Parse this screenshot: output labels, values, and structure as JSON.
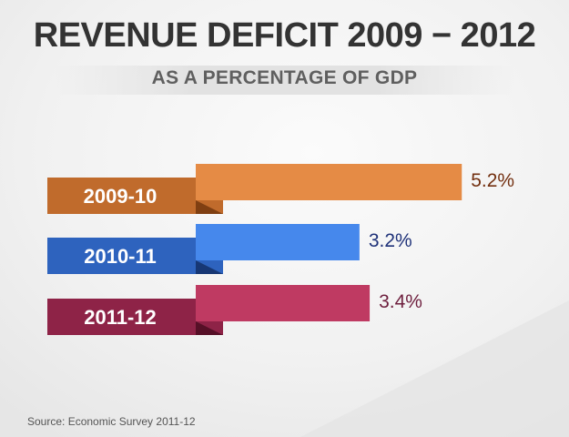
{
  "title": "REVENUE DEFICIT 2009 − 2012",
  "subtitle": "AS A PERCENTAGE OF GDP",
  "source": "Source: Economic Survey 2011-12",
  "chart_data": {
    "type": "bar",
    "orientation": "horizontal",
    "title": "REVENUE DEFICIT 2009 − 2012",
    "subtitle": "AS A PERCENTAGE OF GDP",
    "xlabel": "",
    "ylabel": "",
    "unit": "% of GDP",
    "categories": [
      "2009-10",
      "2010-11",
      "2011-12"
    ],
    "values": [
      5.2,
      3.2,
      3.4
    ],
    "value_labels": [
      "5.2%",
      "3.2%",
      "3.4%"
    ],
    "colors": {
      "bar": [
        "#e58b45",
        "#4688ec",
        "#bf3a62"
      ],
      "tag": [
        "#c06b2c",
        "#2e63be",
        "#8e2347"
      ],
      "fold": [
        "#7f3f12",
        "#173774",
        "#561027"
      ],
      "label": [
        "#733010",
        "#1f3279",
        "#6e1f3e"
      ]
    },
    "grid": false,
    "legend": "none"
  }
}
